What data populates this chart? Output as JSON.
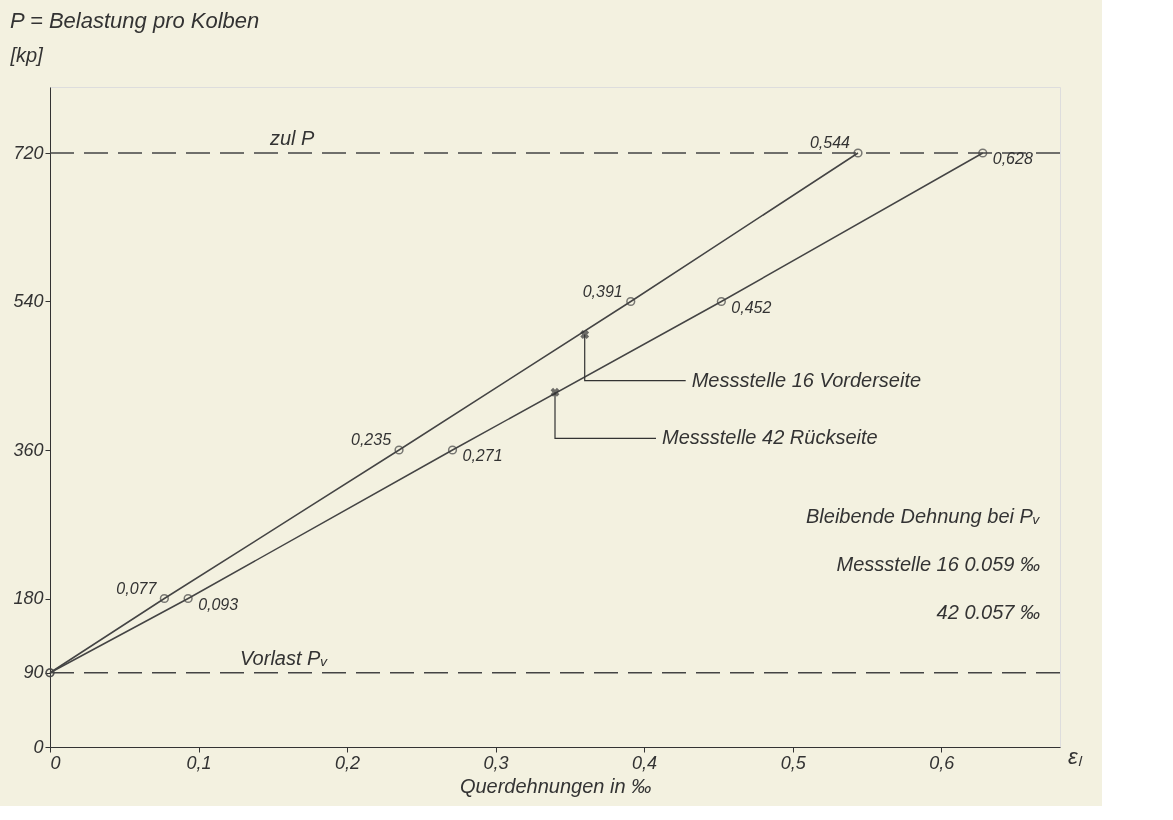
{
  "chart_data": {
    "type": "line",
    "title": "P = Belastung pro Kolben",
    "ylabel": "[kp]",
    "xlabel": "Querdehnungen in ‰",
    "xlim": [
      0,
      0.68
    ],
    "ylim": [
      0,
      800
    ],
    "xticks": [
      0,
      {
        "value": 0.1,
        "label": "0,1"
      },
      {
        "value": 0.2,
        "label": "0,2"
      },
      {
        "value": 0.3,
        "label": "0,3"
      },
      {
        "value": 0.4,
        "label": "0,4"
      },
      {
        "value": 0.5,
        "label": "0,5"
      },
      {
        "value": 0.6,
        "label": "0,6"
      }
    ],
    "yticks": [
      0,
      90,
      180,
      360,
      540,
      720
    ],
    "series": [
      {
        "color": "#444444",
        "x": [
          0,
          0.077,
          0.235,
          0.391,
          0.544
        ],
        "values": [
          90,
          180,
          360,
          540,
          720
        ]
      },
      {
        "color": "#444444",
        "x": [
          0,
          0.093,
          0.271,
          0.452,
          0.628
        ],
        "values": [
          90,
          180,
          360,
          540,
          720
        ]
      }
    ],
    "marker": "circle",
    "line_style": "solid",
    "grid": false,
    "ref_lines": [
      {
        "axis": "y",
        "value": 720,
        "label": "zul P",
        "line_style": "dashed",
        "color": "#444444"
      },
      {
        "axis": "y",
        "value": 90,
        "label": "Vorlast Pᵥ",
        "line_style": "dashed",
        "color": "#444444"
      }
    ],
    "annotations": [
      "εₗ",
      {
        "text": "0,077",
        "x": 0.077,
        "y": 180
      },
      {
        "text": "0,235",
        "x": 0.235,
        "y": 360
      },
      {
        "text": "0,391",
        "x": 0.391,
        "y": 540
      },
      {
        "text": "0,544",
        "x": 0.544,
        "y": 720
      },
      {
        "text": "0,093",
        "x": 0.093,
        "y": 180
      },
      {
        "text": "0,271",
        "x": 0.271,
        "y": 360
      },
      {
        "text": "0,452",
        "x": 0.452,
        "y": 540
      },
      {
        "text": "0,628",
        "x": 0.628,
        "y": 720
      },
      {
        "text": "Messstelle 16  Vorderseite",
        "x": 0.36,
        "y": 500
      },
      {
        "text": "Messstelle 42  Rückseite",
        "x": 0.34,
        "y": 430
      },
      "Bleibende Dehnung bei Pᵥ",
      "Messstelle  16    0.059 ‰",
      "42    0.057 ‰"
    ]
  }
}
